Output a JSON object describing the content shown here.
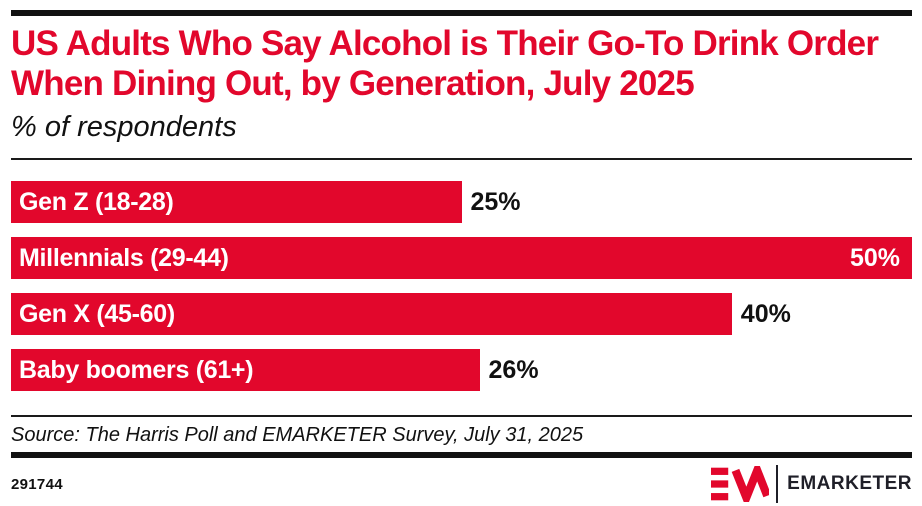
{
  "header": {
    "title": "US Adults Who Say Alcohol is Their Go-To Drink Order When Dining Out, by Generation, July 2025",
    "subtitle": "% of respondents"
  },
  "chart_data": {
    "type": "bar",
    "orientation": "horizontal",
    "title": "US Adults Who Say Alcohol is Their Go-To Drink Order When Dining Out, by Generation, July 2025",
    "xlabel": "% of respondents",
    "categories": [
      "Gen Z (18-28)",
      "Millennials (29-44)",
      "Gen X (45-60)",
      "Baby boomers (61+)"
    ],
    "values": [
      25,
      50,
      40,
      26
    ],
    "value_labels": [
      "25%",
      "50%",
      "40%",
      "26%"
    ],
    "xlim": [
      0,
      50
    ],
    "grid": false,
    "legend": false,
    "bar_color": "#e2072c",
    "value_label_position": [
      "outside",
      "inside",
      "outside",
      "outside"
    ]
  },
  "footer": {
    "source": "Source: The Harris Poll and EMARKETER Survey, July 31, 2025",
    "chart_id": "291744",
    "brand": "EMARKETER"
  },
  "colors": {
    "accent_red": "#e2072c",
    "text_black": "#111111",
    "brand_dark": "#1f1f28"
  }
}
